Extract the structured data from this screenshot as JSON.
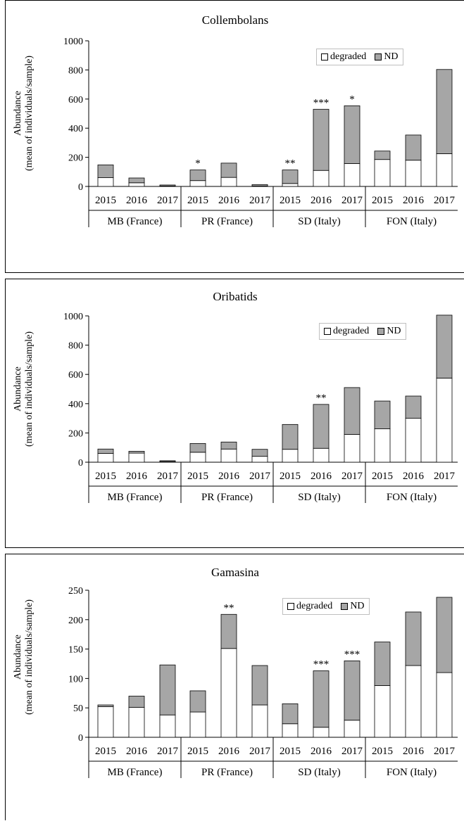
{
  "chart_data": [
    {
      "type": "bar",
      "stacked": true,
      "title": "Collembolans",
      "ylabel": "Abundance\n(mean of individuals/sample)",
      "ylim": [
        0,
        1000
      ],
      "yticks": [
        0,
        200,
        400,
        600,
        800,
        1000
      ],
      "groups": [
        "MB (France)",
        "PR (France)",
        "SD (Italy)",
        "FON (Italy)"
      ],
      "categories": [
        "2015",
        "2016",
        "2017",
        "2015",
        "2016",
        "2017",
        "2015",
        "2016",
        "2017",
        "2015",
        "2016",
        "2017"
      ],
      "series": [
        {
          "name": "degraded",
          "color": "#ffffff",
          "values": [
            60,
            25,
            3,
            40,
            62,
            3,
            20,
            110,
            157,
            185,
            180,
            225
          ]
        },
        {
          "name": "ND",
          "color": "#a6a6a6",
          "values": [
            88,
            33,
            7,
            73,
            98,
            10,
            93,
            420,
            397,
            58,
            173,
            578
          ]
        }
      ],
      "annotations": [
        "",
        "",
        "",
        "*",
        "",
        "",
        "**",
        "***",
        "*",
        "",
        "",
        ""
      ],
      "legend_position": "top-right",
      "grid": false
    },
    {
      "type": "bar",
      "stacked": true,
      "title": "Oribatids",
      "ylabel": "Abundance\n(mean of individuals/sample)",
      "ylim": [
        0,
        1000
      ],
      "yticks": [
        0,
        200,
        400,
        600,
        800,
        1000
      ],
      "groups": [
        "MB (France)",
        "PR (France)",
        "SD (Italy)",
        "FON (Italy)"
      ],
      "categories": [
        "2015",
        "2016",
        "2017",
        "2015",
        "2016",
        "2017",
        "2015",
        "2016",
        "2017",
        "2015",
        "2016",
        "2017"
      ],
      "series": [
        {
          "name": "degraded",
          "color": "#ffffff",
          "values": [
            60,
            62,
            5,
            68,
            90,
            40,
            88,
            95,
            190,
            228,
            300,
            575
          ]
        },
        {
          "name": "ND",
          "color": "#a6a6a6",
          "values": [
            30,
            13,
            5,
            60,
            48,
            48,
            170,
            300,
            320,
            190,
            152,
            430
          ]
        }
      ],
      "annotations": [
        "",
        "",
        "",
        "",
        "",
        "",
        "",
        "**",
        "",
        "",
        "",
        ""
      ],
      "legend_position": "top-right",
      "grid": false
    },
    {
      "type": "bar",
      "stacked": true,
      "title": "Gamasina",
      "ylabel": "Abundance\n(mean of individuals/sample)",
      "ylim": [
        0,
        250
      ],
      "yticks": [
        0,
        50,
        100,
        150,
        200,
        250
      ],
      "groups": [
        "MB (France)",
        "PR (France)",
        "SD (Italy)",
        "FON (Italy)"
      ],
      "categories": [
        "2015",
        "2016",
        "2017",
        "2015",
        "2016",
        "2017",
        "2015",
        "2016",
        "2017",
        "2015",
        "2016",
        "2017"
      ],
      "series": [
        {
          "name": "degraded",
          "color": "#ffffff",
          "values": [
            52,
            51,
            38,
            43,
            151,
            55,
            23,
            17,
            29,
            88,
            122,
            110
          ]
        },
        {
          "name": "ND",
          "color": "#a6a6a6",
          "values": [
            3,
            19,
            85,
            36,
            58,
            67,
            34,
            96,
            101,
            74,
            91,
            128
          ]
        }
      ],
      "annotations": [
        "",
        "",
        "",
        "",
        "**",
        "",
        "",
        "***",
        "***",
        "",
        "",
        ""
      ],
      "legend_position": "top-right",
      "grid": false
    }
  ]
}
